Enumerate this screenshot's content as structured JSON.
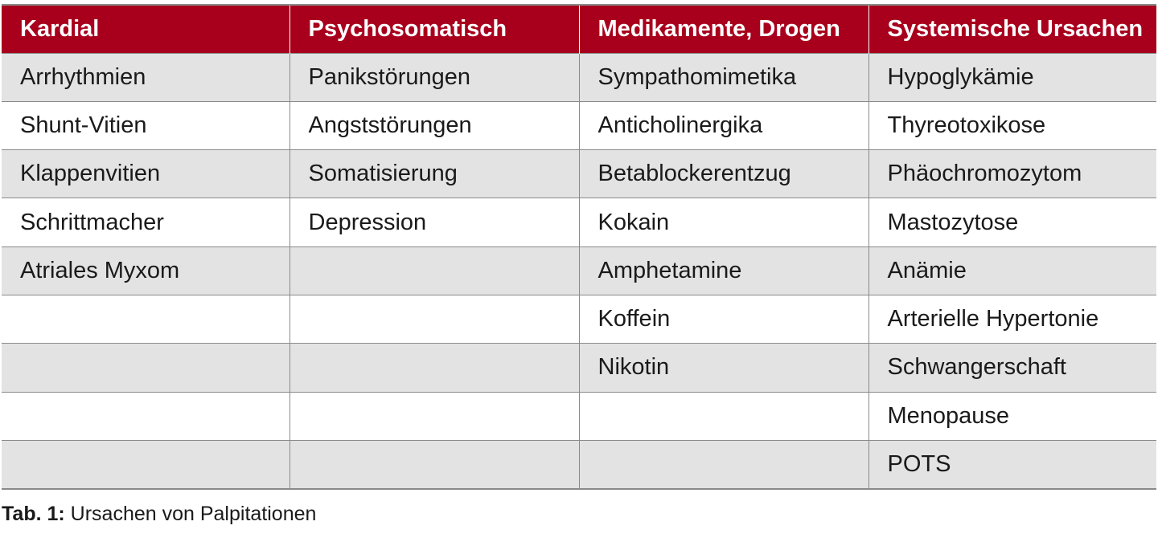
{
  "table": {
    "headers": [
      "Kardial",
      "Psychosomatisch",
      "Medikamente, Drogen",
      "Systemische Ursachen"
    ],
    "rows": [
      [
        "Arrhythmien",
        "Panikstörungen",
        "Sympathomimetika",
        "Hypoglykämie"
      ],
      [
        "Shunt-Vitien",
        "Angststörungen",
        "Anticholinergika",
        "Thyreotoxikose"
      ],
      [
        "Klappenvitien",
        "Somatisierung",
        "Betablockerentzug",
        "Phäochromozytom"
      ],
      [
        "Schrittmacher",
        "Depression",
        "Kokain",
        "Mastozytose"
      ],
      [
        "Atriales Myxom",
        "",
        "Amphetamine",
        "Anämie"
      ],
      [
        "",
        "",
        "Koffein",
        "Arterielle Hypertonie"
      ],
      [
        "",
        "",
        "Nikotin",
        "Schwangerschaft"
      ],
      [
        "",
        "",
        "",
        "Menopause"
      ],
      [
        "",
        "",
        "",
        "POTS"
      ]
    ]
  },
  "caption": {
    "label": "Tab. 1:",
    "text": " Ursachen von Palpitationen"
  },
  "colors": {
    "header_bg": "#a8001c",
    "header_text": "#ffffff",
    "row_shade": "#e3e3e4",
    "row_plain": "#ffffff",
    "grid": "#8a8a8a"
  }
}
